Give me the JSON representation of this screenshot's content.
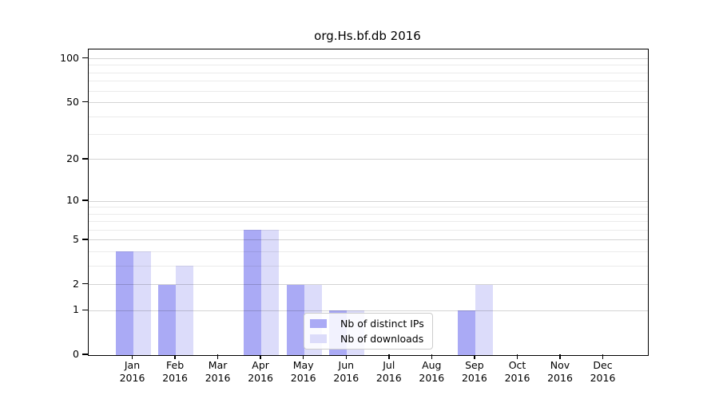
{
  "title": "org.Hs.bf.db 2016",
  "colors": {
    "distinct_ips": "#aaaaf5",
    "downloads": "#dcdcfa",
    "grid_major": "rgba(0,0,0,0.17)",
    "grid_minor": "rgba(0,0,0,0.08)",
    "axis": "#000000",
    "legend_border": "#cccccc"
  },
  "legend": {
    "items": [
      {
        "label": "Nb of distinct IPs",
        "color_key": "distinct_ips"
      },
      {
        "label": "Nb of downloads",
        "color_key": "downloads"
      }
    ]
  },
  "chart_data": {
    "type": "bar",
    "title": "org.Hs.bf.db 2016",
    "categories": [
      "Jan",
      "Feb",
      "Mar",
      "Apr",
      "May",
      "Jun",
      "Jul",
      "Aug",
      "Sep",
      "Oct",
      "Nov",
      "Dec"
    ],
    "year": "2016",
    "series": [
      {
        "name": "Nb of distinct IPs",
        "color_key": "distinct_ips",
        "values": [
          4,
          2,
          0,
          6,
          2,
          1,
          0,
          0,
          1,
          0,
          0,
          0
        ]
      },
      {
        "name": "Nb of downloads",
        "color_key": "downloads",
        "values": [
          4,
          3,
          0,
          6,
          2,
          1,
          0,
          0,
          2,
          0,
          0,
          0
        ]
      }
    ],
    "yscale": "log1p",
    "yticks": [
      0,
      1,
      2,
      5,
      10,
      20,
      50,
      100
    ],
    "y_minor_gridlines": [
      3,
      4,
      6,
      7,
      8,
      9,
      30,
      40,
      60,
      70,
      80,
      90
    ],
    "ylim": [
      0,
      116
    ],
    "xlabel": "",
    "ylabel": "",
    "grid": true,
    "legend_position": "lower-center"
  }
}
